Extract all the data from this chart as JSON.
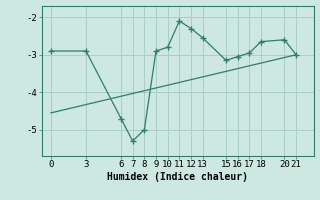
{
  "title": "",
  "xlabel": "Humidex (Indice chaleur)",
  "line_color": "#2e7d6e",
  "bg_color": "#cce8e0",
  "grid_color": "#aacec6",
  "x_data": [
    0,
    3,
    6,
    7,
    8,
    9,
    10,
    11,
    12,
    13,
    15,
    16,
    17,
    18,
    20,
    21
  ],
  "y_data": [
    -2.9,
    -2.9,
    -4.7,
    -5.3,
    -5.0,
    -2.9,
    -2.8,
    -2.1,
    -2.3,
    -2.55,
    -3.15,
    -3.05,
    -2.95,
    -2.65,
    -2.6,
    -3.0
  ],
  "trend_x": [
    0,
    21
  ],
  "trend_y": [
    -4.55,
    -3.0
  ],
  "ylim": [
    -5.7,
    -1.7
  ],
  "xlim": [
    -0.8,
    22.5
  ],
  "yticks": [
    -5,
    -4,
    -3,
    -2
  ],
  "xtick_labels": [
    "0",
    "3",
    "6",
    "7",
    "8",
    "9",
    "10",
    "11",
    "12",
    "13",
    "15",
    "16",
    "17",
    "18",
    "20",
    "21"
  ],
  "xtick_positions": [
    0,
    3,
    6,
    7,
    8,
    9,
    10,
    11,
    12,
    13,
    15,
    16,
    17,
    18,
    20,
    21
  ],
  "label_fontsize": 7,
  "tick_fontsize": 6.5
}
